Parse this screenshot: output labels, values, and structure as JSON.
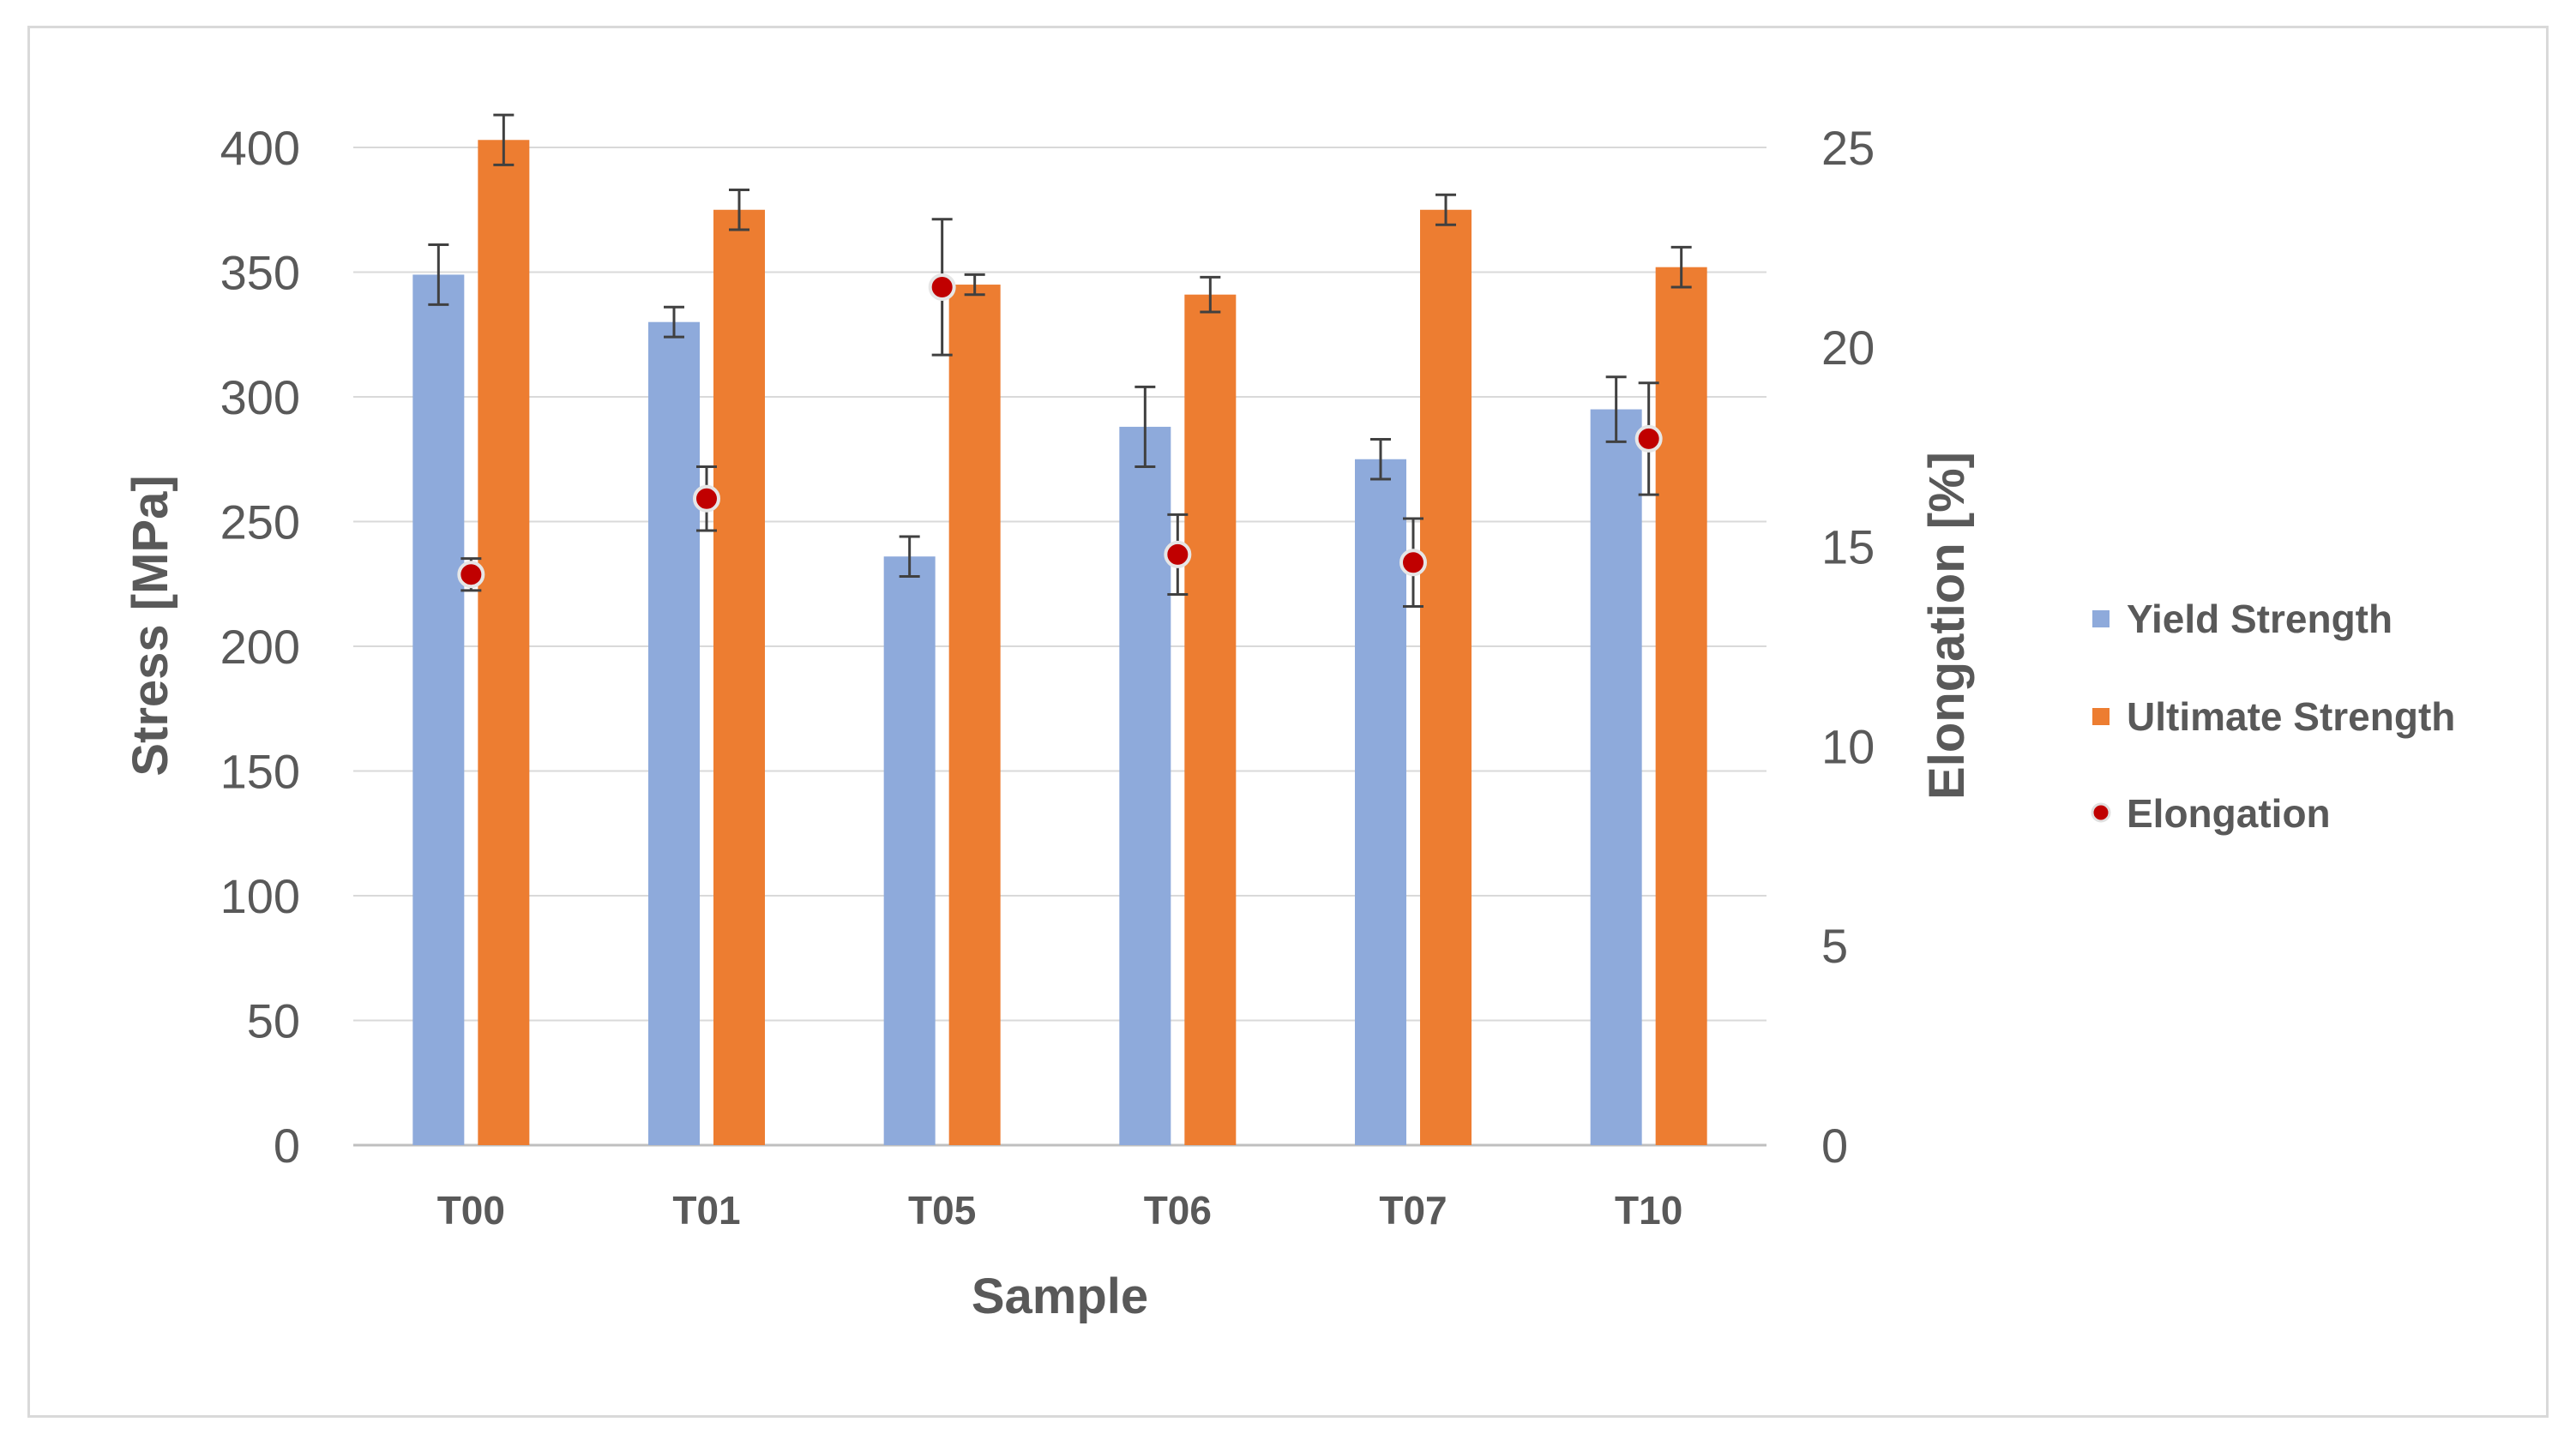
{
  "chart_data": {
    "type": "bar",
    "title": "",
    "xlabel": "Sample",
    "ylabel": "Stress [MPa]",
    "y2label": "Elongation [%]",
    "categories": [
      "T00",
      "T01",
      "T05",
      "T06",
      "T07",
      "T10"
    ],
    "ylim": [
      0,
      400
    ],
    "yticks": [
      "0",
      "50",
      "100",
      "150",
      "200",
      "250",
      "300",
      "350",
      "400"
    ],
    "y2lim": [
      0,
      25
    ],
    "y2ticks": [
      "0",
      "5",
      "10",
      "15",
      "20",
      "25"
    ],
    "grid": true,
    "legend_position": "right",
    "series": [
      {
        "name": "Yield Strength",
        "kind": "bar",
        "axis": "left",
        "color": "#8eaadb",
        "values": [
          349,
          330,
          236,
          288,
          275,
          295
        ],
        "errors": [
          12,
          6,
          8,
          16,
          8,
          13
        ]
      },
      {
        "name": "Ultimate Strength",
        "kind": "bar",
        "axis": "left",
        "color": "#ed7d31",
        "values": [
          403,
          375,
          345,
          341,
          375,
          352
        ],
        "errors": [
          10,
          8,
          4,
          7,
          6,
          8
        ]
      },
      {
        "name": "Elongation",
        "kind": "scatter",
        "axis": "right",
        "color": "#c00000",
        "values": [
          14.3,
          16.2,
          21.5,
          14.8,
          14.6,
          17.7
        ],
        "errors": [
          0.4,
          0.8,
          1.7,
          1.0,
          1.1,
          1.4
        ]
      }
    ]
  }
}
